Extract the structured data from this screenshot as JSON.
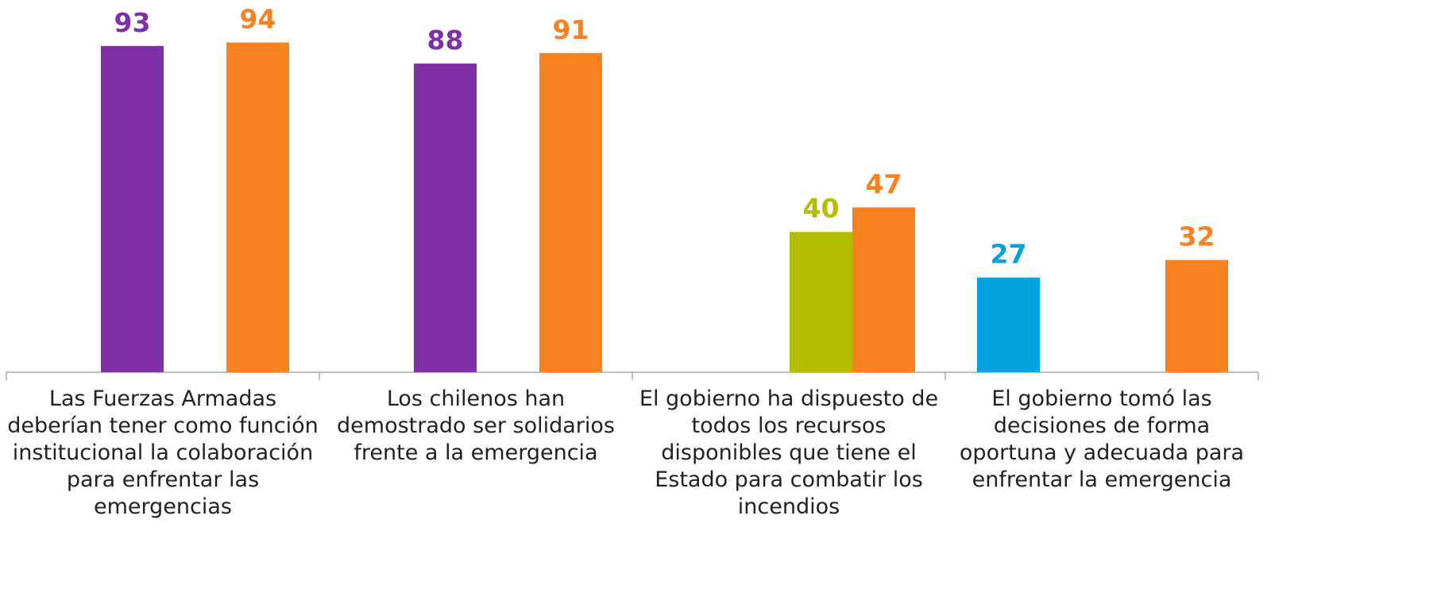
{
  "chart_data": {
    "type": "bar",
    "categories": [
      "Las Fuerzas Armadas deberían tener como función institucional la colaboración para enfrentar las emergencias",
      "Los chilenos han demostrado ser solidarios frente a la emergencia",
      "El gobierno ha dispuesto de todos los recursos disponibles que tiene el Estado para combatir los incendios",
      "El gobierno tomó las decisiones de forma oportuna y adecuada para enfrentar la emergencia"
    ],
    "series": [
      {
        "color": "#00a3e0",
        "values": [
          null,
          null,
          null,
          27
        ]
      },
      {
        "color": "#7f30a6",
        "values": [
          93,
          88,
          null,
          null
        ]
      },
      {
        "color": "#b5bd00",
        "values": [
          null,
          null,
          40,
          null
        ]
      },
      {
        "color": "#f7821f",
        "values": [
          94,
          91,
          47,
          32
        ]
      }
    ],
    "ylim": [
      0,
      100
    ],
    "value_labels_shown": true
  }
}
